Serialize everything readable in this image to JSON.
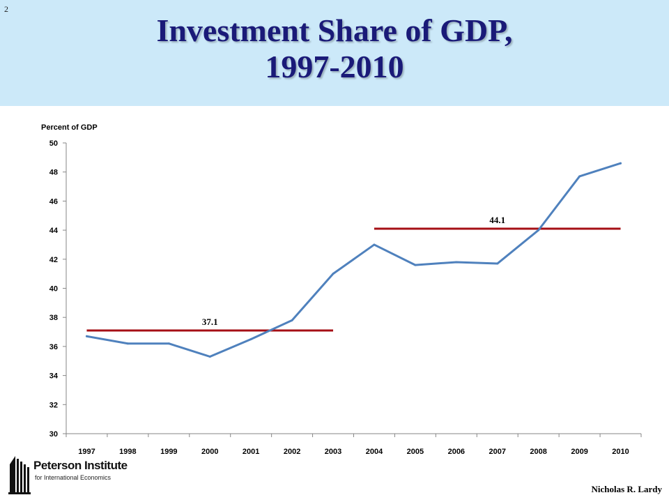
{
  "slide": {
    "number": "2"
  },
  "title": {
    "line1": "Investment Share of GDP,",
    "line2": "1997-2010"
  },
  "footer": {
    "logo_name": "Peterson Institute",
    "logo_subtitle": "for International Economics",
    "author": "Nicholas R. Lardy"
  },
  "chart_data": {
    "type": "line",
    "ylabel": "Percent of GDP",
    "ylim": [
      30,
      50
    ],
    "ytick_step": 2,
    "categories": [
      "1997",
      "1998",
      "1999",
      "2000",
      "2001",
      "2002",
      "2003",
      "2004",
      "2005",
      "2006",
      "2007",
      "2008",
      "2009",
      "2010"
    ],
    "series": [
      {
        "values": [
          36.7,
          36.2,
          36.2,
          35.3,
          36.5,
          37.8,
          41.0,
          43.0,
          41.6,
          41.8,
          41.7,
          44.0,
          47.7,
          48.6
        ],
        "color": "#4f81bd"
      }
    ],
    "averages": [
      {
        "label": "37.1",
        "value": 37.1,
        "from": "1997",
        "to": "2003",
        "color": "#a50f15"
      },
      {
        "label": "44.1",
        "value": 44.1,
        "from": "2004",
        "to": "2010",
        "color": "#a50f15"
      }
    ],
    "grid": false
  }
}
